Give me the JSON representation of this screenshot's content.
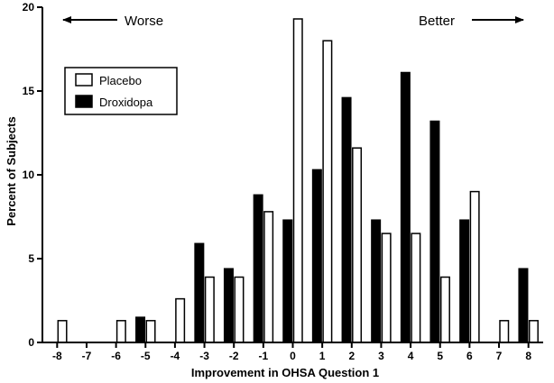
{
  "chart_data": {
    "type": "bar",
    "title": "",
    "xlabel": "Improvement in OHSA Question 1",
    "ylabel": "Percent of Subjects",
    "ylim": [
      0,
      20
    ],
    "yticks": [
      "0",
      "5",
      "10",
      "15",
      "20"
    ],
    "categories": [
      "-8",
      "-7",
      "-6",
      "-5",
      "-4",
      "-3",
      "-2",
      "-1",
      "0",
      "1",
      "2",
      "3",
      "4",
      "5",
      "6",
      "7",
      "8"
    ],
    "series": [
      {
        "name": "Droxidopa",
        "color": "#000000",
        "values": [
          0,
          0,
          0,
          1.5,
          0,
          5.9,
          4.4,
          8.8,
          7.3,
          10.3,
          14.6,
          7.3,
          16.1,
          13.2,
          7.3,
          0,
          4.4
        ]
      },
      {
        "name": "Placebo",
        "color": "#ffffff",
        "values": [
          1.3,
          0,
          1.3,
          1.3,
          2.6,
          3.9,
          3.9,
          7.8,
          19.3,
          18.0,
          11.6,
          6.5,
          6.5,
          3.9,
          9.0,
          1.3,
          1.3
        ]
      }
    ],
    "legend": {
      "position": "top-left",
      "entries": [
        "Placebo",
        "Droxidopa"
      ]
    },
    "annotations": {
      "left": "Worse",
      "right": "Better"
    }
  }
}
